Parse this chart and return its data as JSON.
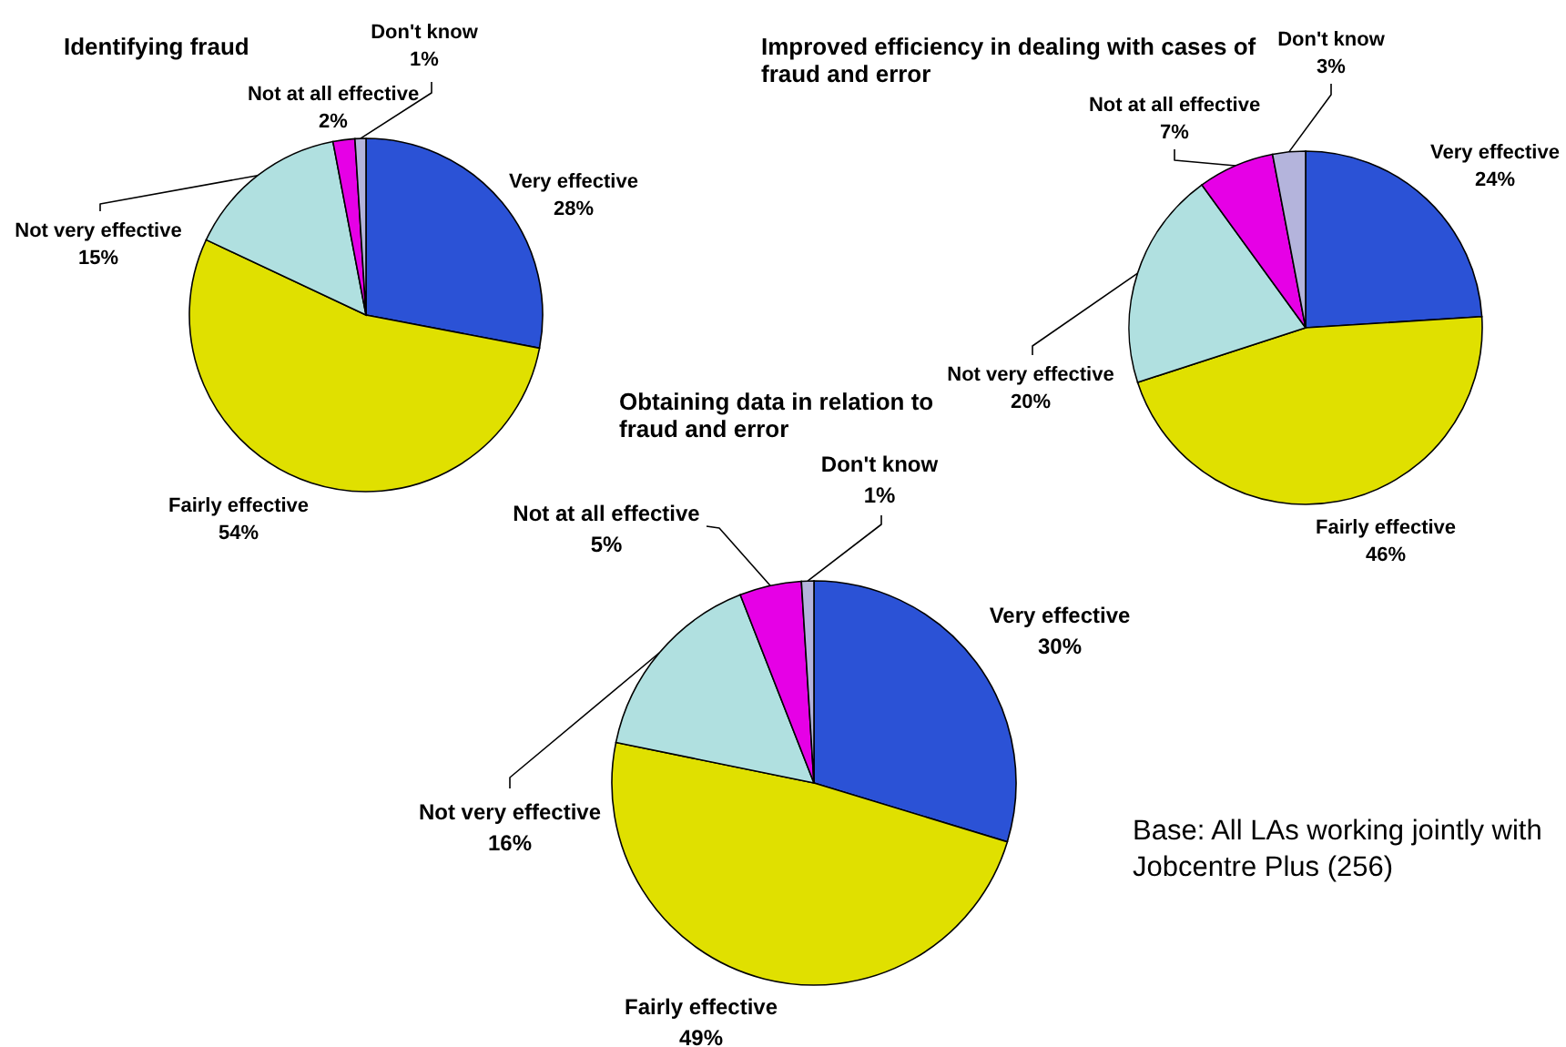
{
  "chart_data": [
    {
      "type": "pie",
      "title": "Identifying fraud",
      "categories": [
        "Very effective",
        "Fairly effective",
        "Not very effective",
        "Not at all effective",
        "Don't know"
      ],
      "values": [
        28,
        54,
        15,
        2,
        1
      ],
      "value_labels": [
        "28%",
        "54%",
        "15%",
        "2%",
        "1%"
      ],
      "colors": [
        "#2b52d6",
        "#e0e000",
        "#b0e0e0",
        "#e600e6",
        "#b4b4dc"
      ]
    },
    {
      "type": "pie",
      "title": "Improved efficiency in dealing with cases of fraud and error",
      "categories": [
        "Very effective",
        "Fairly effective",
        "Not very effective",
        "Not at all effective",
        "Don't know"
      ],
      "values": [
        24,
        46,
        20,
        7,
        3
      ],
      "value_labels": [
        "24%",
        "46%",
        "20%",
        "7%",
        "3%"
      ],
      "colors": [
        "#2b52d6",
        "#e0e000",
        "#b0e0e0",
        "#e600e6",
        "#b4b4dc"
      ]
    },
    {
      "type": "pie",
      "title": "Obtaining data in relation to fraud and error",
      "categories": [
        "Very effective",
        "Fairly effective",
        "Not very effective",
        "Not at all effective",
        "Don't know"
      ],
      "values": [
        30,
        49,
        16,
        5,
        1
      ],
      "value_labels": [
        "30%",
        "49%",
        "16%",
        "5%",
        "1%"
      ],
      "colors": [
        "#2b52d6",
        "#e0e000",
        "#b0e0e0",
        "#e600e6",
        "#b4b4dc"
      ],
      "annotations": [
        "Base: All LAs working jointly with Jobcentre Plus (256)"
      ]
    }
  ]
}
